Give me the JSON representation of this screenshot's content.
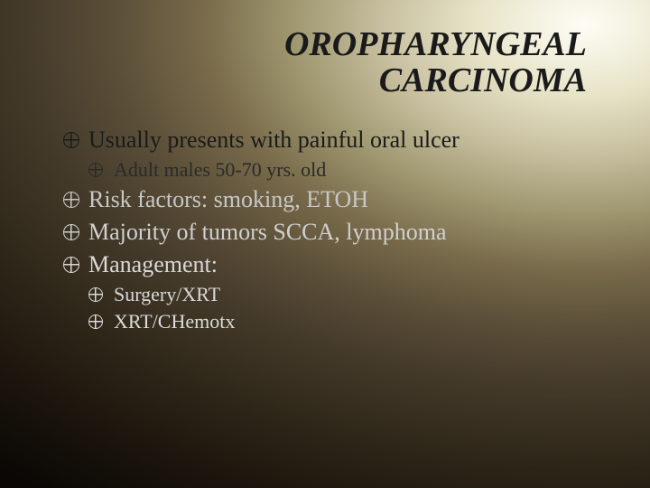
{
  "slide": {
    "title_line1": "OROPHARYNGEAL",
    "title_line2": "CARCINOMA",
    "title_fontsize": 38,
    "title_color": "#1a1a1a",
    "bullets": [
      {
        "level": 1,
        "text": "Usually presents with painful oral ulcer",
        "fontsize": 26,
        "color": "#1a1a1a"
      },
      {
        "level": 2,
        "text": "Adult males 50-70 yrs. old",
        "fontsize": 22,
        "color": "#2a2a2a"
      },
      {
        "level": 1,
        "text": "Risk factors:  smoking, ETOH",
        "fontsize": 26,
        "color": "#c8c8c8"
      },
      {
        "level": 1,
        "text": "Majority of tumors SCCA, lymphoma",
        "fontsize": 26,
        "color": "#d0d0d0"
      },
      {
        "level": 1,
        "text": "Management:",
        "fontsize": 26,
        "color": "#d8d8d8"
      },
      {
        "level": 2,
        "text": "Surgery/XRT",
        "fontsize": 22,
        "color": "#d8d8d8"
      },
      {
        "level": 2,
        "text": "XRT/CHemotx",
        "fontsize": 22,
        "color": "#dcdcdc"
      }
    ]
  },
  "background": {
    "type": "radial-gradient",
    "light_corner": "top-right",
    "colors": [
      "#fefdf5",
      "#e8e4c8",
      "#c8c0a0",
      "#a09870",
      "#786a4a",
      "#5a4e38",
      "#443a2a",
      "#2e2618",
      "#1a140c",
      "#0a0704"
    ]
  }
}
